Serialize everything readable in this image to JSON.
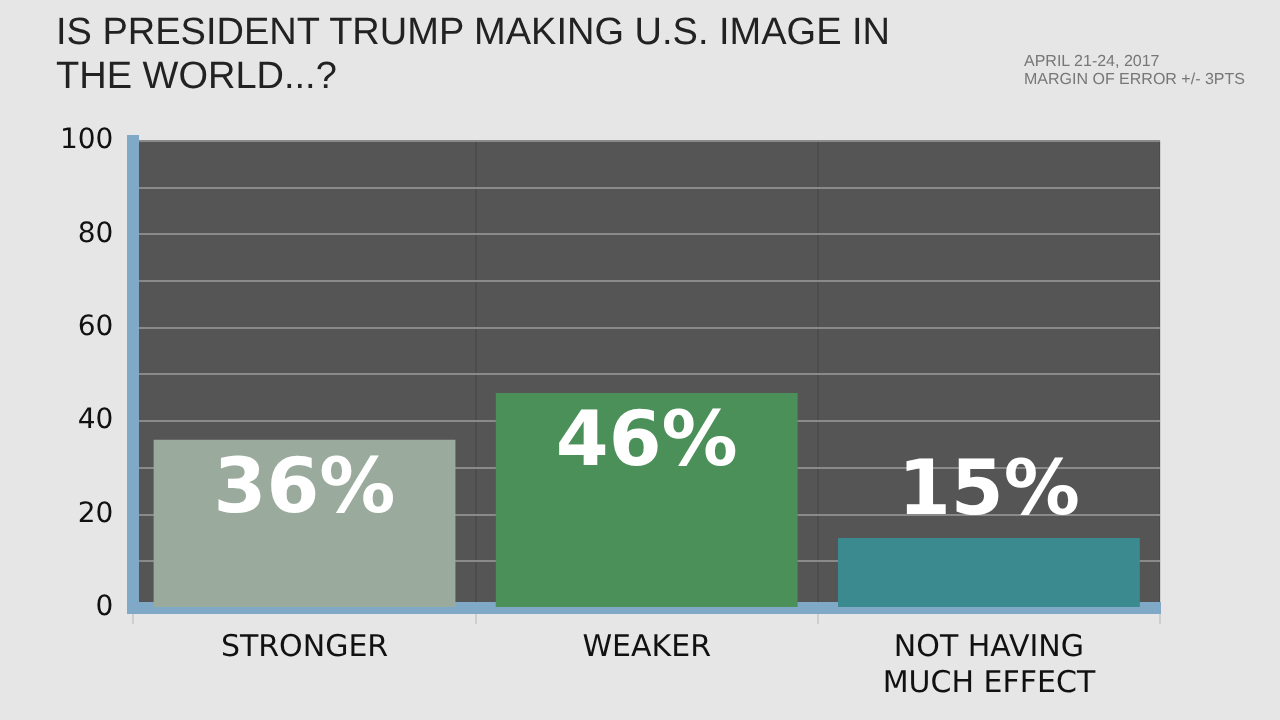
{
  "chart_data": {
    "type": "bar",
    "title": "IS PRESIDENT TRUMP MAKING U.S. IMAGE IN THE WORLD...?",
    "annotations": [
      "APRIL 21-24, 2017",
      "MARGIN OF ERROR +/- 3PTS"
    ],
    "categories": [
      "STRONGER",
      "WEAKER",
      "NOT HAVING MUCH EFFECT"
    ],
    "values": [
      36,
      46,
      15
    ],
    "colors": [
      "#9aab9d",
      "#4b8f59",
      "#3a8a8f"
    ],
    "value_labels": [
      "36%",
      "46%",
      "15%"
    ],
    "ylim": [
      0,
      100
    ],
    "yticks": [
      0,
      {
        "value": 10,
        "label": null
      },
      20,
      {
        "value": 30,
        "label": null
      },
      40,
      {
        "value": 50,
        "label": null
      },
      60,
      {
        "value": 70,
        "label": null
      },
      80,
      {
        "value": 90,
        "label": null
      },
      100
    ],
    "grid": true,
    "legend": false
  }
}
